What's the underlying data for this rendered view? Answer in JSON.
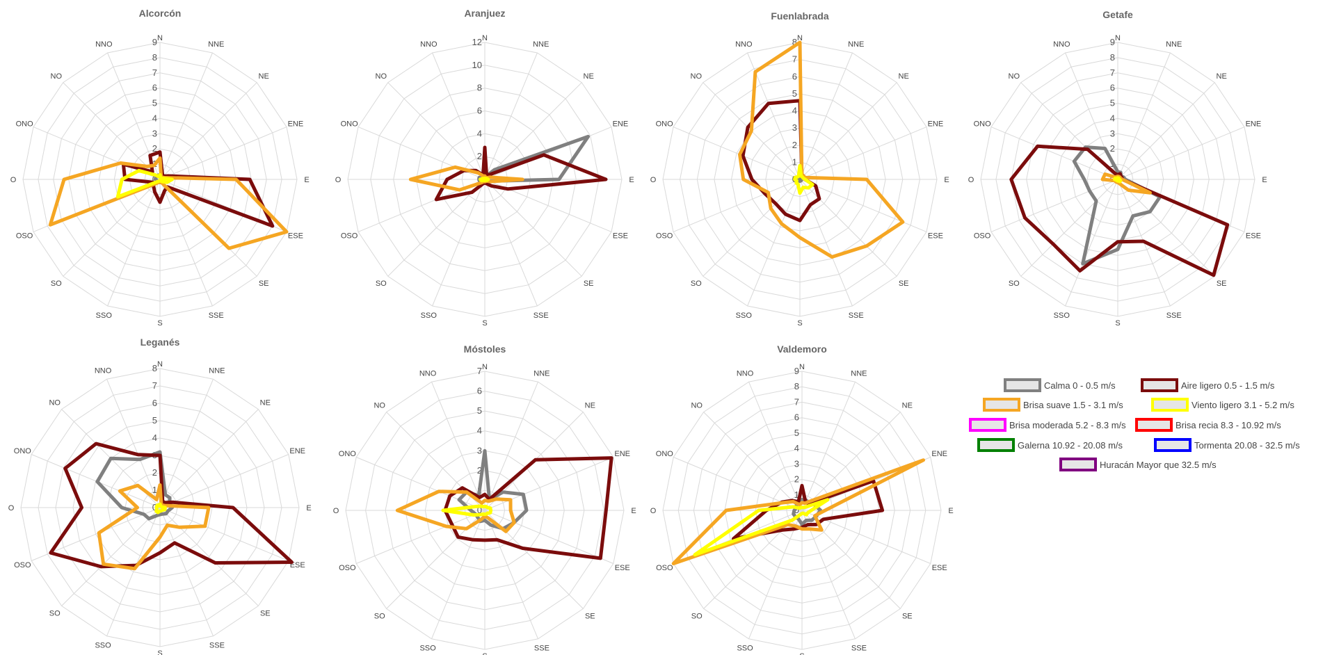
{
  "directions": [
    "N",
    "NNE",
    "NE",
    "ENE",
    "E",
    "ESE",
    "SE",
    "SSE",
    "S",
    "SSO",
    "SO",
    "OSO",
    "O",
    "ONO",
    "NO",
    "NNO"
  ],
  "legend": [
    {
      "label": "Calma 0 - 0.5 m/s",
      "color": "#808080"
    },
    {
      "label": "Aire ligero 0.5 - 1.5 m/s",
      "color": "#7b0c0c"
    },
    {
      "label": "Brisa suave 1.5 - 3.1 m/s",
      "color": "#f5a623"
    },
    {
      "label": "Viento ligero 3.1 - 5.2 m/s",
      "color": "#ffff00"
    },
    {
      "label": "Brisa moderada 5.2 - 8.3 m/s",
      "color": "#ff00ff"
    },
    {
      "label": "Brisa recia 8.3 - 10.92 m/s",
      "color": "#ff0000"
    },
    {
      "label": "Galerna 10.92 - 20.08 m/s",
      "color": "#008000"
    },
    {
      "label": "Tormenta 20.08 - 32.5 m/s",
      "color": "#0000ff"
    },
    {
      "label": "Huracán Mayor que 32.5 m/s",
      "color": "#800080"
    }
  ],
  "chart_data": [
    {
      "type": "radar",
      "title": "Alcorcón",
      "rmax": 9,
      "ticks": [
        0,
        1,
        2,
        3,
        4,
        5,
        6,
        7,
        8,
        9
      ],
      "series": [
        {
          "name": "Calma 0 - 0.5 m/s",
          "values": [
            0.3,
            0.2,
            0.2,
            0.2,
            0.2,
            0.2,
            0.2,
            0.2,
            0.2,
            0.2,
            0.2,
            0.2,
            0.3,
            0.3,
            0.3,
            0.3
          ]
        },
        {
          "name": "Aire ligero 0.5 - 1.5 m/s",
          "values": [
            1.8,
            0.4,
            0.3,
            0.6,
            5.9,
            8.0,
            0.7,
            0.8,
            1.5,
            0.9,
            0.6,
            0.5,
            2.3,
            2.6,
            0.7,
            1.7
          ]
        },
        {
          "name": "Brisa suave 1.5 - 3.1 m/s",
          "values": [
            1.4,
            0.2,
            0.2,
            0.3,
            5.0,
            9.0,
            6.4,
            0.2,
            0.2,
            0.2,
            0.4,
            7.8,
            6.3,
            2.8,
            1.2,
            1.0
          ]
        },
        {
          "name": "Viento ligero 3.1 - 5.2 m/s",
          "values": [
            0.3,
            0.1,
            0.1,
            0.2,
            0.8,
            0.5,
            0.2,
            0.1,
            0.1,
            0.1,
            0.2,
            3.0,
            2.5,
            1.5,
            0.4,
            0.2
          ]
        }
      ]
    },
    {
      "type": "radar",
      "title": "Aranjuez",
      "rmax": 12,
      "ticks": [
        0,
        2,
        4,
        6,
        8,
        10,
        12
      ],
      "series": [
        {
          "name": "Calma 0 - 0.5 m/s",
          "values": [
            0.3,
            0.3,
            1.2,
            9.8,
            6.5,
            0.4,
            0.3,
            0.3,
            0.3,
            0.3,
            0.3,
            0.3,
            0.5,
            0.4,
            0.3,
            0.3
          ]
        },
        {
          "name": "Aire ligero 0.5 - 1.5 m/s",
          "values": [
            2.8,
            0.4,
            0.6,
            5.6,
            10.6,
            2.2,
            0.8,
            0.4,
            0.3,
            0.4,
            1.6,
            4.6,
            3.3,
            2.0,
            1.1,
            0.4
          ]
        },
        {
          "name": "Brisa suave 1.5 - 3.1 m/s",
          "values": [
            0.3,
            0.2,
            0.2,
            0.5,
            3.3,
            0.5,
            0.2,
            0.2,
            0.2,
            0.2,
            0.4,
            2.4,
            6.5,
            2.8,
            0.8,
            0.3
          ]
        },
        {
          "name": "Viento ligero 3.1 - 5.2 m/s",
          "values": [
            0.1,
            0.1,
            0.1,
            0.2,
            0.3,
            0.2,
            0.1,
            0.1,
            0.1,
            0.1,
            0.1,
            0.3,
            0.4,
            0.2,
            0.1,
            0.1
          ]
        }
      ]
    },
    {
      "type": "radar",
      "title": "Fuenlabrada",
      "rmax": 8,
      "ticks": [
        0,
        1,
        2,
        3,
        4,
        5,
        6,
        7,
        8
      ],
      "series": [
        {
          "name": "Calma 0 - 0.5 m/s",
          "values": [
            0.2,
            0.1,
            0.1,
            0.1,
            0.1,
            0.1,
            0.1,
            0.1,
            0.1,
            0.1,
            0.1,
            0.1,
            0.1,
            0.1,
            0.1,
            0.1
          ]
        },
        {
          "name": "Aire ligero 0.5 - 1.5 m/s",
          "values": [
            4.6,
            0.3,
            0.3,
            0.3,
            0.3,
            1.0,
            1.6,
            1.6,
            2.4,
            2.2,
            2.0,
            2.2,
            2.8,
            3.6,
            4.3,
            4.8
          ]
        },
        {
          "name": "Brisa suave 1.5 - 3.1 m/s",
          "values": [
            8.0,
            0.3,
            0.3,
            0.3,
            3.9,
            6.5,
            5.5,
            4.9,
            3.4,
            2.8,
            2.4,
            2.0,
            3.3,
            3.8,
            4.0,
            6.8
          ]
        },
        {
          "name": "Viento ligero 3.1 - 5.2 m/s",
          "values": [
            0.8,
            0.2,
            0.2,
            0.2,
            0.3,
            0.8,
            0.7,
            0.5,
            0.8,
            0.3,
            0.3,
            0.2,
            0.3,
            0.3,
            0.2,
            0.2
          ]
        }
      ]
    },
    {
      "type": "radar",
      "title": "Getafe",
      "rmax": 9,
      "ticks": [
        0,
        1,
        2,
        3,
        4,
        5,
        6,
        7,
        8,
        9
      ],
      "series": [
        {
          "name": "Calma 0 - 0.5 m/s",
          "values": [
            0.5,
            0.5,
            0.3,
            0.4,
            0.5,
            3.0,
            3.0,
            2.6,
            4.6,
            6.0,
            2.0,
            2.0,
            2.2,
            3.1,
            3.0,
            2.2
          ]
        },
        {
          "name": "Aire ligero 0.5 - 1.5 m/s",
          "values": [
            0.3,
            0.4,
            0.3,
            0.3,
            0.3,
            7.8,
            8.9,
            4.4,
            4.1,
            6.5,
            6.0,
            6.6,
            7.0,
            5.7,
            2.8,
            0.4
          ]
        },
        {
          "name": "Brisa suave 1.5 - 3.1 m/s",
          "values": [
            0.2,
            0.2,
            0.2,
            0.2,
            0.3,
            2.3,
            1.0,
            0.3,
            0.2,
            0.2,
            0.2,
            0.2,
            1.0,
            0.9,
            0.2,
            0.2
          ]
        },
        {
          "name": "Viento ligero 3.1 - 5.2 m/s",
          "values": [
            0.1,
            0.1,
            0.1,
            0.1,
            0.1,
            0.2,
            0.2,
            0.1,
            0.1,
            0.1,
            0.1,
            0.1,
            0.2,
            0.2,
            0.1,
            0.1
          ]
        }
      ]
    },
    {
      "type": "radar",
      "title": "Leganés",
      "rmax": 8,
      "ticks": [
        0,
        1,
        2,
        3,
        4,
        5,
        6,
        7,
        8
      ],
      "series": [
        {
          "name": "Calma 0 - 0.5 m/s",
          "values": [
            3.2,
            0.8,
            0.8,
            0.6,
            0.7,
            0.5,
            0.5,
            0.4,
            0.4,
            0.5,
            0.9,
            1.0,
            2.2,
            3.9,
            4.0,
            3.0
          ]
        },
        {
          "name": "Aire ligero 0.5 - 1.5 m/s",
          "values": [
            3.0,
            0.4,
            0.4,
            0.8,
            4.2,
            8.2,
            4.5,
            2.2,
            2.6,
            3.6,
            4.8,
            6.8,
            4.5,
            5.9,
            5.2,
            3.3
          ]
        },
        {
          "name": "Brisa suave 1.5 - 3.1 m/s",
          "values": [
            1.3,
            0.2,
            0.2,
            0.3,
            2.8,
            2.8,
            1.6,
            1.1,
            1.7,
            3.8,
            4.6,
            3.8,
            1.3,
            2.5,
            1.8,
            0.5
          ]
        },
        {
          "name": "Viento ligero 3.1 - 5.2 m/s",
          "values": [
            0.2,
            0.1,
            0.1,
            0.1,
            0.3,
            0.3,
            0.2,
            0.2,
            0.2,
            0.3,
            0.3,
            0.2,
            0.2,
            0.2,
            0.2,
            0.1
          ]
        }
      ]
    },
    {
      "type": "radar",
      "title": "Móstoles",
      "rmax": 7,
      "ticks": [
        0,
        1,
        2,
        3,
        4,
        5,
        6,
        7
      ],
      "series": [
        {
          "name": "Calma 0 - 0.5 m/s",
          "values": [
            3.0,
            0.6,
            1.3,
            2.1,
            2.1,
            1.6,
            1.3,
            0.8,
            0.5,
            0.6,
            0.5,
            0.5,
            0.7,
            1.4,
            1.3,
            0.8
          ]
        },
        {
          "name": "Aire ligero 0.5 - 1.5 m/s",
          "values": [
            0.8,
            0.6,
            3.6,
            6.9,
            6.1,
            6.3,
            2.7,
            1.6,
            1.5,
            1.6,
            1.9,
            1.8,
            2.0,
            1.9,
            1.6,
            0.7
          ]
        },
        {
          "name": "Brisa suave 1.5 - 3.1 m/s",
          "values": [
            0.5,
            0.5,
            0.8,
            1.4,
            1.3,
            1.6,
            1.5,
            0.4,
            0.3,
            0.5,
            1.3,
            2.1,
            4.4,
            2.5,
            1.3,
            0.4
          ]
        },
        {
          "name": "Viento ligero 3.1 - 5.2 m/s",
          "values": [
            0.2,
            0.2,
            0.2,
            0.3,
            0.3,
            0.3,
            0.2,
            0.2,
            0.2,
            0.2,
            0.3,
            0.6,
            2.1,
            0.5,
            0.3,
            0.2
          ]
        }
      ]
    },
    {
      "type": "radar",
      "title": "Valdemoro",
      "rmax": 9,
      "ticks": [
        0,
        1,
        2,
        3,
        4,
        5,
        6,
        7,
        8,
        9
      ],
      "series": [
        {
          "name": "Calma 0 - 0.5 m/s",
          "values": [
            0.7,
            0.7,
            0.7,
            0.9,
            1.2,
            1.0,
            0.9,
            0.7,
            0.9,
            0.6,
            0.6,
            0.6,
            0.5,
            0.4,
            0.5,
            0.5
          ]
        },
        {
          "name": "Aire ligero 0.5 - 1.5 m/s",
          "values": [
            1.6,
            0.6,
            0.6,
            5.0,
            5.2,
            1.5,
            1.3,
            1.0,
            1.1,
            1.3,
            1.8,
            4.8,
            2.3,
            1.4,
            0.9,
            0.6
          ]
        },
        {
          "name": "Brisa suave 1.5 - 3.1 m/s",
          "values": [
            0.5,
            0.5,
            0.9,
            8.5,
            1.5,
            0.9,
            1.8,
            1.3,
            1.2,
            1.1,
            1.3,
            9.0,
            4.9,
            1.3,
            0.8,
            0.4
          ]
        },
        {
          "name": "Viento ligero 3.1 - 5.2 m/s",
          "values": [
            0.2,
            0.2,
            0.3,
            1.8,
            0.6,
            0.4,
            0.4,
            0.2,
            0.2,
            0.3,
            0.9,
            7.5,
            2.8,
            0.6,
            0.2,
            0.2
          ]
        },
        {
          "name": "Huracán Mayor que 32.5 m/s",
          "values": [
            0,
            0,
            0,
            0,
            0,
            0,
            0,
            0,
            0,
            0,
            0,
            0,
            0,
            0,
            0,
            0
          ]
        }
      ]
    }
  ]
}
